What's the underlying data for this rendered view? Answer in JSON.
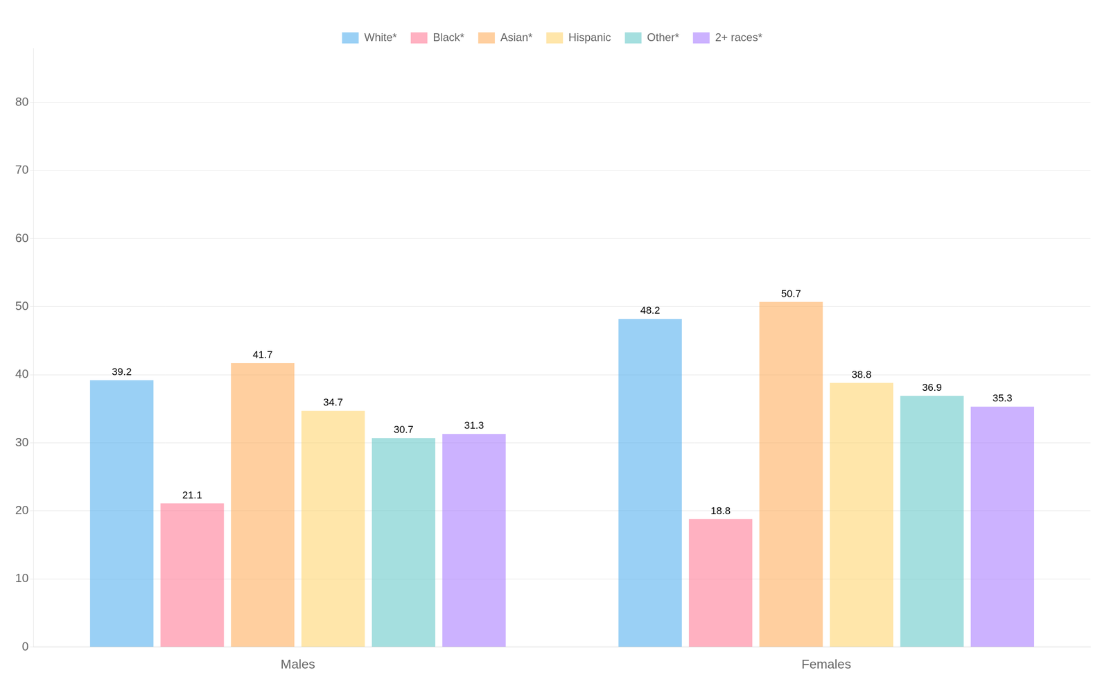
{
  "chart_data": {
    "type": "bar",
    "categories": [
      "Males",
      "Females"
    ],
    "series": [
      {
        "name": "White*",
        "values": [
          39.2,
          48.2
        ]
      },
      {
        "name": "Black*",
        "values": [
          21.1,
          18.8
        ]
      },
      {
        "name": "Asian*",
        "values": [
          41.7,
          50.7
        ]
      },
      {
        "name": "Hispanic",
        "values": [
          34.7,
          38.8
        ]
      },
      {
        "name": "Other*",
        "values": [
          30.7,
          36.9
        ]
      },
      {
        "name": "2+ races*",
        "values": [
          31.3,
          35.3
        ]
      }
    ],
    "ylim": [
      0,
      88
    ],
    "yticks": [
      0,
      10,
      20,
      30,
      40,
      50,
      60,
      70,
      80
    ],
    "grid": true,
    "legend": "top",
    "data_labels": true
  }
}
